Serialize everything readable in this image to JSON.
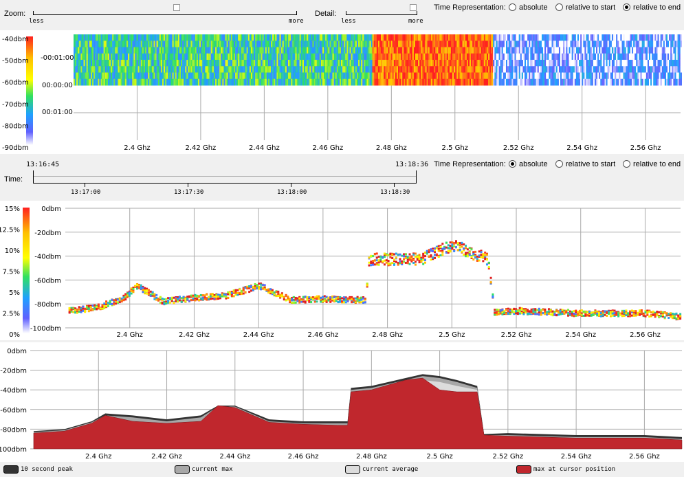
{
  "top_controls": {
    "zoom_label": "Zoom:",
    "zoom_less": "less",
    "zoom_more": "more",
    "detail_label": "Detail:",
    "detail_less": "less",
    "detail_more": "more",
    "time_rep_label": "Time Representation:",
    "options": [
      "absolute",
      "relative to start",
      "relative to end"
    ],
    "selected": "relative to end"
  },
  "waterfall": {
    "colorbar_labels": [
      "-40dbm",
      "-50dbm",
      "-60dbm",
      "-70dbm",
      "-80dbm",
      "-90dbm"
    ],
    "time_labels": [
      "-00:01:00",
      "00:00:00",
      "00:01:00"
    ],
    "freq_ticks": [
      "2.4 Ghz",
      "2.42 Ghz",
      "2.44 Ghz",
      "2.46 Ghz",
      "2.48 Ghz",
      "2.5 Ghz",
      "2.52 Ghz",
      "2.54 Ghz",
      "2.56 Ghz"
    ]
  },
  "time_controls": {
    "start_time": "13:16:45",
    "end_time": "13:18:36",
    "time_label": "Time:",
    "ticks": [
      "13:17:00",
      "13:17:30",
      "13:18:00",
      "13:18:30"
    ],
    "time_rep_label": "Time Representation:",
    "options": [
      "absolute",
      "relative to start",
      "relative to end"
    ],
    "selected": "absolute"
  },
  "density": {
    "colorbar_labels": [
      "15%",
      "12.5%",
      "10%",
      "7.5%",
      "5%",
      "2.5%",
      "0%"
    ],
    "y_ticks": [
      "0dbm",
      "-20dbm",
      "-40dbm",
      "-60dbm",
      "-80dbm",
      "-100dbm"
    ],
    "freq_ticks": [
      "2.4 Ghz",
      "2.42 Ghz",
      "2.44 Ghz",
      "2.46 Ghz",
      "2.48 Ghz",
      "2.5 Ghz",
      "2.52 Ghz",
      "2.54 Ghz",
      "2.56 Ghz"
    ]
  },
  "spectrum": {
    "y_ticks": [
      "0dbm",
      "-20dbm",
      "-40dbm",
      "-60dbm",
      "-80dbm",
      "-100dbm"
    ],
    "freq_ticks": [
      "2.4 Ghz",
      "2.42 Ghz",
      "2.44 Ghz",
      "2.46 Ghz",
      "2.48 Ghz",
      "2.5 Ghz",
      "2.52 Ghz",
      "2.54 Ghz",
      "2.56 Ghz"
    ]
  },
  "legend": [
    {
      "label": "10 second peak",
      "color": "#333333"
    },
    {
      "label": "current max",
      "color": "#a8a8a8"
    },
    {
      "label": "current average",
      "color": "#dcdcdc"
    },
    {
      "label": "max at cursor position",
      "color": "#c0272d"
    }
  ],
  "chart_data": [
    {
      "type": "heatmap",
      "x_unit": "GHz",
      "xlim": [
        2.38,
        2.571
      ],
      "color_range_dbm": [
        -90,
        -40
      ],
      "bands": [
        {
          "from": 2.38,
          "to": 2.474,
          "level_dbm": -72
        },
        {
          "from": 2.474,
          "to": 2.512,
          "level_dbm": -45
        },
        {
          "from": 2.512,
          "to": 2.571,
          "level_dbm": -85
        }
      ]
    },
    {
      "type": "scatter",
      "x_unit": "GHz",
      "xlim": [
        2.38,
        2.571
      ],
      "ylim": [
        -100,
        0
      ],
      "y_unit": "dBm",
      "x": [
        2.381,
        2.39,
        2.398,
        2.402,
        2.41,
        2.42,
        2.43,
        2.44,
        2.45,
        2.46,
        2.473,
        2.474,
        2.49,
        2.5,
        2.511,
        2.513,
        2.52,
        2.54,
        2.56,
        2.571
      ],
      "y": [
        -85,
        -82,
        -74,
        -64,
        -77,
        -74,
        -72,
        -64,
        -76,
        -75,
        -76,
        -42,
        -42,
        -30,
        -42,
        -86,
        -85,
        -87,
        -87,
        -90
      ]
    },
    {
      "type": "area",
      "x_unit": "GHz",
      "xlim": [
        2.38,
        2.571
      ],
      "ylim": [
        -100,
        0
      ],
      "y_unit": "dBm",
      "x": [
        2.381,
        2.39,
        2.398,
        2.402,
        2.41,
        2.42,
        2.43,
        2.435,
        2.44,
        2.45,
        2.46,
        2.47,
        2.473,
        2.474,
        2.48,
        2.49,
        2.495,
        2.5,
        2.505,
        2.511,
        2.513,
        2.52,
        2.54,
        2.56,
        2.571
      ],
      "series": [
        {
          "name": "10 second peak",
          "values": [
            -82,
            -80,
            -72,
            -64,
            -66,
            -70,
            -66,
            -56,
            -56,
            -70,
            -72,
            -72,
            -72,
            -38,
            -36,
            -28,
            -24,
            -26,
            -30,
            -36,
            -85,
            -84,
            -86,
            -86,
            -88
          ]
        },
        {
          "name": "current max",
          "values": [
            -83,
            -81,
            -73,
            -66,
            -68,
            -72,
            -68,
            -57,
            -57,
            -72,
            -74,
            -74,
            -74,
            -40,
            -38,
            -30,
            -26,
            -28,
            -32,
            -38,
            -86,
            -86,
            -88,
            -88,
            -90
          ]
        },
        {
          "name": "current average",
          "values": [
            -85,
            -83,
            -76,
            -70,
            -72,
            -75,
            -72,
            -60,
            -60,
            -75,
            -77,
            -77,
            -77,
            -42,
            -40,
            -34,
            -30,
            -32,
            -36,
            -40,
            -88,
            -88,
            -90,
            -90,
            -92
          ]
        },
        {
          "name": "max at cursor position",
          "values": [
            -84,
            -82,
            -74,
            -66,
            -72,
            -74,
            -72,
            -56,
            -58,
            -73,
            -75,
            -76,
            -76,
            -42,
            -40,
            -30,
            -28,
            -40,
            -42,
            -42,
            -86,
            -87,
            -89,
            -89,
            -91
          ]
        }
      ]
    }
  ]
}
